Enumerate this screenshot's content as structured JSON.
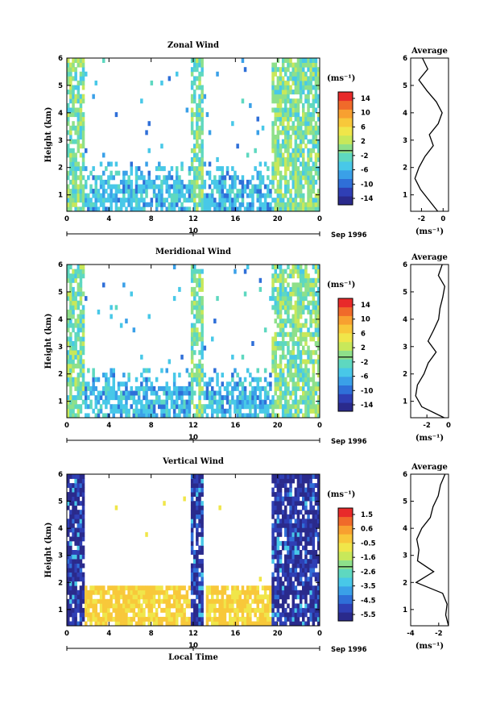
{
  "page": {
    "time_axis_label": "Local Time",
    "height_axis_label": "Height (km)"
  },
  "palette": [
    "#2a2a8c",
    "#2f3fb5",
    "#2f6fd8",
    "#3aa0e8",
    "#48c8e8",
    "#5ed8c0",
    "#8ee08a",
    "#c8e85a",
    "#f0e64a",
    "#f8c83a",
    "#f8a030",
    "#f06a2a",
    "#e82a2a"
  ],
  "panels": [
    {
      "title": "Zonal Wind",
      "ylabel": "Height (km)",
      "yticks": [
        "1",
        "2",
        "3",
        "4",
        "5",
        "6"
      ],
      "xticks": [
        "0",
        "4",
        "8",
        "12",
        "16",
        "20",
        "0"
      ],
      "day_tick": "10",
      "date_label": "Sep 1996",
      "colorbar": {
        "unit": "(ms⁻¹)",
        "ticks": [
          "14",
          "10",
          "6",
          "2",
          "-2",
          "-6",
          "-10",
          "-14"
        ]
      },
      "average": {
        "title": "Average",
        "unit": "(ms⁻¹)",
        "xticks": [
          "-2",
          "0"
        ],
        "yticks": [
          "1",
          "2",
          "3",
          "4",
          "5",
          "6"
        ]
      }
    },
    {
      "title": "Meridional Wind",
      "ylabel": "Height (km)",
      "yticks": [
        "1",
        "2",
        "3",
        "4",
        "5",
        "6"
      ],
      "xticks": [
        "0",
        "4",
        "8",
        "12",
        "16",
        "20",
        "0"
      ],
      "day_tick": "10",
      "date_label": "Sep 1996",
      "colorbar": {
        "unit": "(ms⁻¹)",
        "ticks": [
          "14",
          "10",
          "6",
          "2",
          "-2",
          "-6",
          "-10",
          "-14"
        ]
      },
      "average": {
        "title": "Average",
        "unit": "(ms⁻¹)",
        "xticks": [
          "-2",
          "0"
        ],
        "yticks": [
          "1",
          "2",
          "3",
          "4",
          "5",
          "6"
        ]
      }
    },
    {
      "title": "Vertical Wind",
      "ylabel": "Height (km)",
      "yticks": [
        "1",
        "2",
        "3",
        "4",
        "5",
        "6"
      ],
      "xticks": [
        "0",
        "4",
        "8",
        "12",
        "16",
        "20",
        "0"
      ],
      "day_tick": "10",
      "date_label": "Sep 1996",
      "xlabel": "Local Time",
      "colorbar": {
        "unit": "(ms⁻¹)",
        "ticks": [
          "1.5",
          "0.6",
          "-0.5",
          "-1.6",
          "-2.6",
          "-3.5",
          "-4.5",
          "-5.5"
        ]
      },
      "average": {
        "title": "Average",
        "unit": "(ms⁻¹)",
        "xticks": [
          "-4",
          "-2"
        ],
        "yticks": [
          "1",
          "2",
          "3",
          "4",
          "5",
          "6"
        ]
      }
    }
  ],
  "chart_data": [
    {
      "type": "heatmap",
      "title": "Zonal Wind",
      "xlabel": "",
      "ylabel": "Height (km)",
      "xlim": [
        0,
        24
      ],
      "ylim": [
        0.4,
        6
      ],
      "xtick_values": [
        0,
        4,
        8,
        12,
        16,
        20,
        24
      ],
      "date_label": "Sep 1996",
      "colorbar_range": [
        -14,
        14
      ],
      "profile": {
        "title": "Average",
        "xlabel": "(ms⁻¹)",
        "xlim": [
          -3,
          0.5
        ],
        "ylim": [
          0.4,
          6
        ],
        "height": [
          0.4,
          0.8,
          1.2,
          1.6,
          2.0,
          2.4,
          2.8,
          3.2,
          3.6,
          4.0,
          4.4,
          4.8,
          5.2,
          5.6,
          6.0
        ],
        "value": [
          -0.5,
          -1.2,
          -2.2,
          -2.6,
          -2.2,
          -1.6,
          -1.0,
          -1.3,
          -0.4,
          0.0,
          -0.7,
          -1.6,
          -2.3,
          -1.4,
          -1.9
        ]
      }
    },
    {
      "type": "heatmap",
      "title": "Meridional Wind",
      "xlabel": "",
      "ylabel": "Height (km)",
      "xlim": [
        0,
        24
      ],
      "ylim": [
        0.4,
        6
      ],
      "xtick_values": [
        0,
        4,
        8,
        12,
        16,
        20,
        24
      ],
      "date_label": "Sep 1996",
      "colorbar_range": [
        -14,
        14
      ],
      "profile": {
        "title": "Average",
        "xlabel": "(ms⁻¹)",
        "xlim": [
          -3.5,
          0
        ],
        "ylim": [
          0.4,
          6
        ],
        "height": [
          0.4,
          0.8,
          1.2,
          1.6,
          2.0,
          2.4,
          2.8,
          3.2,
          3.6,
          4.0,
          4.4,
          4.8,
          5.2,
          5.6,
          6.0
        ],
        "value": [
          -0.4,
          -2.5,
          -3.0,
          -2.8,
          -2.2,
          -1.8,
          -1.2,
          -1.8,
          -1.4,
          -1.0,
          -0.8,
          -0.6,
          -0.3,
          -0.9,
          -0.5
        ]
      }
    },
    {
      "type": "heatmap",
      "title": "Vertical Wind",
      "xlabel": "Local Time",
      "ylabel": "Height (km)",
      "xlim": [
        0,
        24
      ],
      "ylim": [
        0.4,
        6
      ],
      "xtick_values": [
        0,
        4,
        8,
        12,
        16,
        20,
        24
      ],
      "date_label": "Sep 1996",
      "colorbar_range": [
        -5.5,
        1.5
      ],
      "profile": {
        "title": "Average",
        "xlabel": "(ms⁻¹)",
        "xlim": [
          -4,
          -1.3
        ],
        "ylim": [
          0.4,
          6
        ],
        "height": [
          0.4,
          0.8,
          1.2,
          1.6,
          2.0,
          2.4,
          2.8,
          3.2,
          3.6,
          4.0,
          4.4,
          4.8,
          5.2,
          5.6,
          6.0
        ],
        "value": [
          -1.3,
          -1.5,
          -1.4,
          -1.8,
          -3.6,
          -2.3,
          -3.5,
          -3.4,
          -3.6,
          -3.2,
          -2.6,
          -2.4,
          -2.0,
          -1.9,
          -1.5
        ]
      }
    }
  ]
}
